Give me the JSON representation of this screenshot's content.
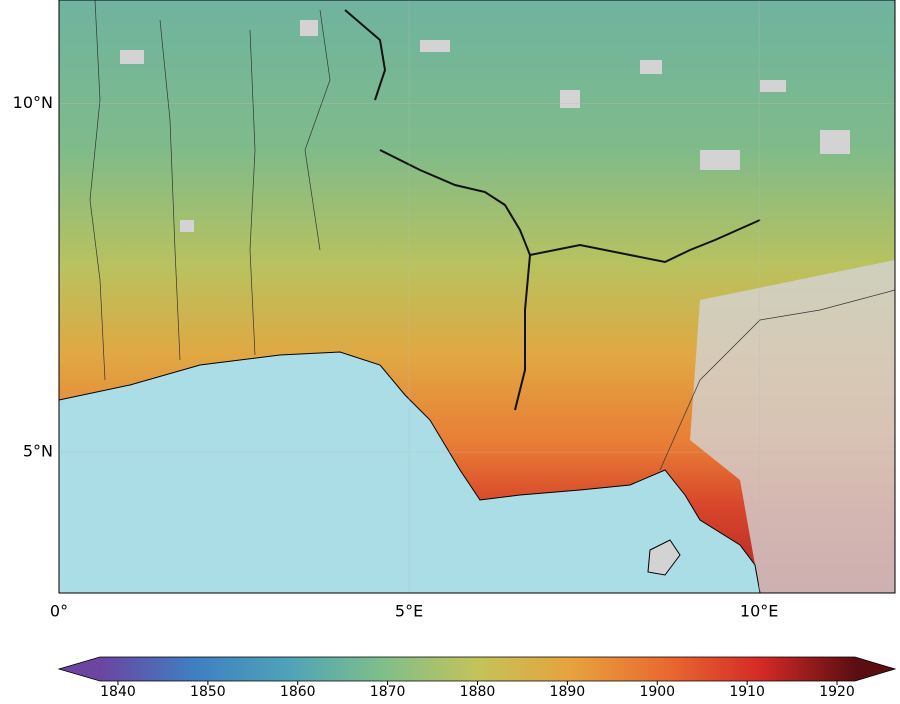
{
  "map": {
    "type": "map",
    "xlim": [
      0,
      11.94
    ],
    "ylim": [
      2.98,
      11.48
    ],
    "xticks": [
      {
        "value": 0,
        "label": "0°"
      },
      {
        "value": 5,
        "label": "5°E"
      },
      {
        "value": 10,
        "label": "10°E"
      }
    ],
    "yticks": [
      {
        "value": 5,
        "label": "5°N"
      },
      {
        "value": 10,
        "label": "10°N"
      }
    ],
    "grid": true,
    "colorbar": {
      "lim": [
        1838,
        1922
      ],
      "ticks": [
        1840,
        1850,
        1860,
        1870,
        1880,
        1890,
        1900,
        1910,
        1920
      ],
      "colors": [
        "#6b45a0",
        "#3f7fc2",
        "#4fa3b8",
        "#7fbf8a",
        "#c4c35a",
        "#e7a23d",
        "#e96a30",
        "#d42a26",
        "#5b0e12"
      ]
    }
  }
}
